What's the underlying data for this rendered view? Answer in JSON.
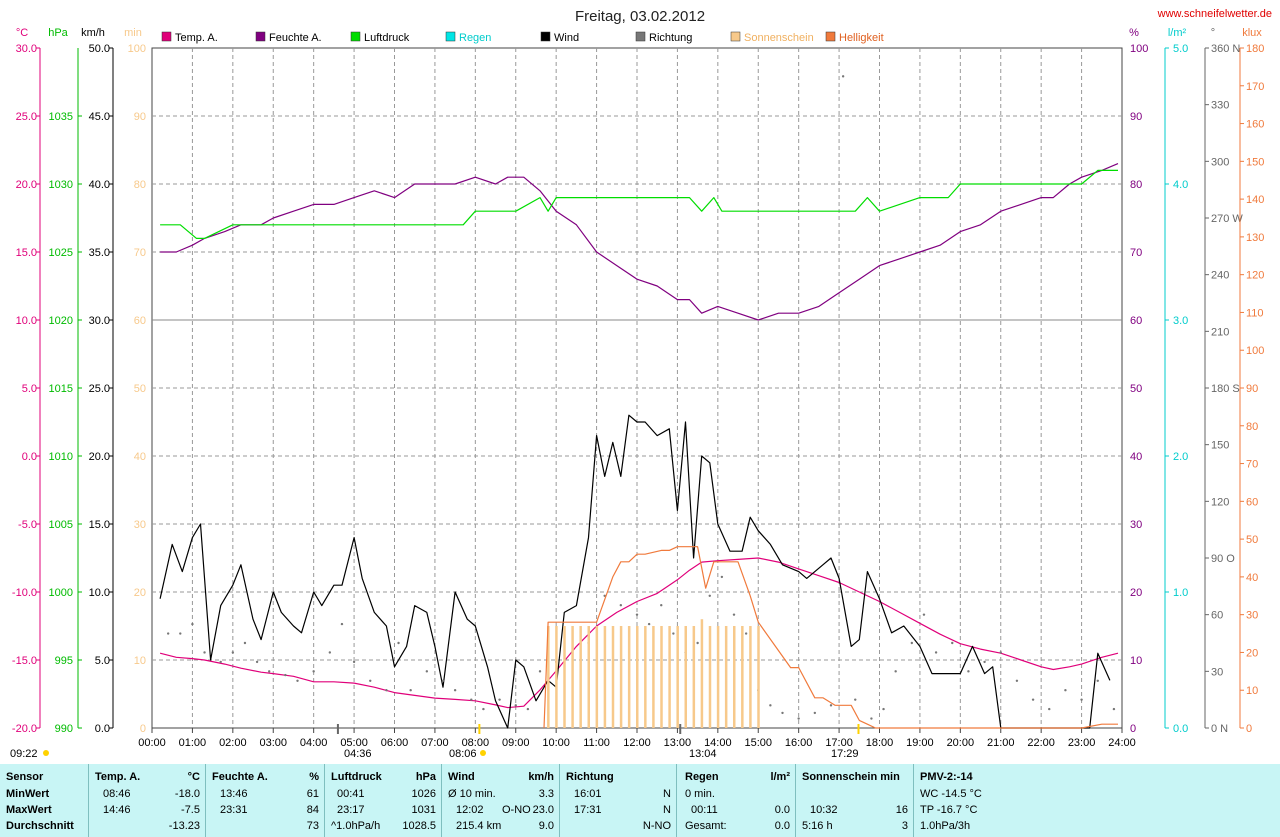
{
  "title": "Freitag, 03.02.2012",
  "site": "www.schneifelwetter.de",
  "axis_units": {
    "temp": "°C",
    "pressure": "hPa",
    "wind": "km/h",
    "sun_min": "min",
    "humidity": "%",
    "rain": "l/m²",
    "direction": "°",
    "light": "klux"
  },
  "legend": [
    {
      "name": "Temp. A.",
      "color": "#e0007a"
    },
    {
      "name": "Feuchte A.",
      "color": "#800080"
    },
    {
      "name": "Luftdruck",
      "color": "#00dd00"
    },
    {
      "name": "Regen",
      "color": "#00e5e5"
    },
    {
      "name": "Wind",
      "color": "#000000"
    },
    {
      "name": "Richtung",
      "color": "#777777"
    },
    {
      "name": "Sonnenschein",
      "color": "#f7c98b"
    },
    {
      "name": "Helligkeit",
      "color": "#f07a3c"
    }
  ],
  "markers": {
    "start": "09:22",
    "moonset": "04:36",
    "sunrise": "08:06",
    "moon_transit": "13:04",
    "sunset": "17:29"
  },
  "chart_data": {
    "type": "line",
    "x_ticks": [
      "00:00",
      "01:00",
      "02:00",
      "03:00",
      "04:00",
      "05:00",
      "06:00",
      "07:00",
      "08:00",
      "09:00",
      "10:00",
      "11:00",
      "12:00",
      "13:00",
      "14:00",
      "15:00",
      "16:00",
      "17:00",
      "18:00",
      "19:00",
      "20:00",
      "21:00",
      "22:00",
      "23:00",
      "24:00"
    ],
    "xlim": [
      0,
      24
    ],
    "axes": {
      "temp": {
        "range": [
          -20,
          30
        ],
        "ticks": [
          "30.0",
          "25.0",
          "20.0",
          "15.0",
          "10.0",
          "5.0",
          "0.0",
          "-5.0",
          "-10.0",
          "-15.0",
          "-20.0"
        ]
      },
      "pressure": {
        "range": [
          990,
          1040
        ],
        "ticks": [
          "1035",
          "1030",
          "1025",
          "1020",
          "1015",
          "1010",
          "1005",
          "1000",
          "995",
          "990"
        ]
      },
      "wind": {
        "range": [
          0,
          50
        ],
        "ticks": [
          "50.0",
          "45.0",
          "40.0",
          "35.0",
          "30.0",
          "25.0",
          "20.0",
          "15.0",
          "10.0",
          "5.0",
          "0.0"
        ]
      },
      "sun_min": {
        "range": [
          0,
          100
        ],
        "ticks": [
          "100",
          "90",
          "80",
          "70",
          "60",
          "50",
          "40",
          "30",
          "20",
          "10",
          "0"
        ]
      },
      "humidity": {
        "range": [
          0,
          100
        ],
        "ticks": [
          "100",
          "90",
          "80",
          "70",
          "60",
          "50",
          "40",
          "30",
          "20",
          "10",
          "0"
        ]
      },
      "rain": {
        "range": [
          0,
          5
        ],
        "ticks": [
          "5.0",
          "4.0",
          "3.0",
          "2.0",
          "1.0",
          "0.0"
        ]
      },
      "direction": {
        "range": [
          0,
          360
        ],
        "ticks": [
          "360 N",
          "330",
          "300",
          "270 W",
          "240",
          "210",
          "180 S",
          "150",
          "120",
          "90 O",
          "60",
          "30",
          "0 N"
        ]
      },
      "light": {
        "range": [
          0,
          180
        ],
        "ticks": [
          "180",
          "170",
          "160",
          "150",
          "140",
          "130",
          "120",
          "110",
          "100",
          "90",
          "80",
          "70",
          "60",
          "50",
          "40",
          "30",
          "20",
          "10",
          "0"
        ]
      }
    },
    "series": [
      {
        "name": "Temp. A.",
        "axis": "temp",
        "color": "#e0007a",
        "x": [
          0.2,
          0.6,
          1.0,
          1.3,
          1.8,
          2.2,
          2.7,
          3.0,
          3.5,
          4.0,
          4.5,
          5.0,
          5.5,
          6.0,
          6.5,
          7.0,
          7.5,
          8.0,
          8.5,
          8.8,
          9.2,
          9.6,
          10.0,
          10.5,
          11.0,
          11.5,
          12.0,
          12.5,
          13.0,
          13.3,
          13.6,
          14.0,
          14.5,
          15.0,
          15.5,
          16.0,
          16.5,
          17.0,
          17.5,
          18.0,
          18.5,
          19.0,
          19.5,
          20.0,
          20.5,
          21.0,
          21.5,
          22.0,
          22.3,
          22.7,
          23.0,
          23.5,
          23.9
        ],
        "values": [
          -14.5,
          -14.8,
          -14.9,
          -15.0,
          -15.3,
          -15.6,
          -15.9,
          -16.0,
          -16.2,
          -16.6,
          -16.6,
          -16.7,
          -17.0,
          -17.4,
          -17.6,
          -17.8,
          -17.9,
          -18.0,
          -18.3,
          -18.5,
          -18.4,
          -17.2,
          -15.8,
          -14.0,
          -12.5,
          -11.5,
          -10.7,
          -10.1,
          -9.1,
          -8.4,
          -7.8,
          -7.7,
          -7.6,
          -7.5,
          -7.8,
          -8.3,
          -8.8,
          -9.3,
          -10.0,
          -10.7,
          -11.5,
          -12.3,
          -13.1,
          -13.8,
          -14.2,
          -14.5,
          -15.0,
          -15.5,
          -15.7,
          -15.5,
          -15.3,
          -14.8,
          -14.5
        ]
      },
      {
        "name": "Feuchte A.",
        "axis": "humidity",
        "color": "#800080",
        "x": [
          0.2,
          0.6,
          1.0,
          1.3,
          1.8,
          2.2,
          2.7,
          3.0,
          3.5,
          4.0,
          4.5,
          5.0,
          5.5,
          6.0,
          6.5,
          7.0,
          7.5,
          8.0,
          8.5,
          8.8,
          9.2,
          9.6,
          10.0,
          10.5,
          11.0,
          11.5,
          12.0,
          12.5,
          13.0,
          13.3,
          13.6,
          14.0,
          14.5,
          15.0,
          15.5,
          16.0,
          16.5,
          17.0,
          17.5,
          18.0,
          18.5,
          19.0,
          19.5,
          20.0,
          20.5,
          21.0,
          21.5,
          22.0,
          22.3,
          22.7,
          23.0,
          23.5,
          23.9
        ],
        "values": [
          70,
          70,
          71,
          72,
          73,
          74,
          74,
          75,
          76,
          77,
          77,
          78,
          79,
          78,
          80,
          80,
          80,
          81,
          80,
          81,
          81,
          79,
          76,
          74,
          70,
          68,
          66,
          65,
          63,
          63,
          61,
          62,
          61,
          60,
          61,
          61,
          62,
          64,
          66,
          68,
          69,
          70,
          71,
          73,
          74,
          76,
          77,
          78,
          78,
          80,
          81,
          82,
          83
        ]
      },
      {
        "name": "Luftdruck",
        "axis": "pressure",
        "color": "#00dd00",
        "x": [
          0.2,
          0.7,
          1.1,
          1.3,
          2.0,
          3.0,
          4.0,
          5.0,
          6.0,
          7.0,
          7.7,
          8.0,
          9.0,
          9.6,
          9.8,
          10.0,
          10.3,
          11.0,
          12.0,
          13.0,
          13.3,
          13.6,
          13.9,
          14.1,
          15.0,
          16.0,
          17.0,
          17.4,
          17.7,
          18.0,
          19.0,
          19.4,
          19.7,
          20.0,
          21.0,
          22.0,
          23.0,
          23.4,
          23.9
        ],
        "values": [
          1027,
          1027,
          1026,
          1026,
          1027,
          1027,
          1027,
          1027,
          1027,
          1027,
          1027,
          1028,
          1028,
          1029,
          1028,
          1029,
          1029,
          1029,
          1029,
          1029,
          1029,
          1028,
          1029,
          1028,
          1028,
          1028,
          1028,
          1028,
          1029,
          1028,
          1029,
          1029,
          1029,
          1030,
          1030,
          1030,
          1030,
          1031,
          1031
        ]
      },
      {
        "name": "Wind",
        "axis": "wind",
        "color": "#000000",
        "x": [
          0.2,
          0.5,
          0.75,
          1.0,
          1.2,
          1.45,
          1.7,
          2.0,
          2.2,
          2.5,
          2.7,
          3.0,
          3.2,
          3.5,
          3.7,
          4.0,
          4.2,
          4.5,
          4.7,
          5.0,
          5.2,
          5.5,
          5.8,
          6.0,
          6.3,
          6.5,
          6.8,
          7.0,
          7.2,
          7.5,
          7.8,
          8.0,
          8.3,
          8.5,
          8.8,
          9.0,
          9.2,
          9.5,
          9.8,
          10.0,
          10.2,
          10.5,
          10.8,
          11.0,
          11.2,
          11.4,
          11.6,
          11.8,
          12.0,
          12.2,
          12.5,
          12.8,
          13.0,
          13.2,
          13.4,
          13.6,
          13.8,
          14.0,
          14.3,
          14.6,
          14.8,
          15.0,
          15.3,
          15.6,
          16.0,
          16.2,
          16.6,
          16.8,
          17.0,
          17.3,
          17.5,
          17.7,
          18.0,
          18.3,
          18.6,
          19.0,
          19.3,
          19.6,
          20.0,
          20.3,
          20.6,
          20.8,
          21.0,
          21.5,
          22.0,
          22.5,
          23.0,
          23.2,
          23.4,
          23.7
        ],
        "values": [
          9.5,
          13.5,
          11.5,
          14.0,
          15.0,
          5.0,
          9.0,
          10.5,
          12.0,
          8.0,
          6.5,
          10.0,
          8.5,
          7.5,
          7.0,
          10.0,
          9.0,
          10.5,
          10.5,
          14.0,
          11.0,
          8.5,
          7.5,
          4.5,
          6.0,
          9.0,
          8.5,
          6.0,
          3.0,
          10.0,
          8.0,
          7.5,
          4.5,
          2.0,
          0.0,
          5.0,
          4.5,
          2.0,
          3.5,
          3.0,
          8.5,
          9.0,
          14.0,
          21.5,
          18.5,
          21.0,
          18.5,
          23.0,
          22.5,
          22.5,
          21.5,
          22.0,
          16.0,
          22.5,
          12.5,
          20.0,
          19.5,
          15.0,
          13.0,
          13.0,
          15.5,
          14.5,
          13.5,
          12.0,
          11.5,
          11.0,
          12.0,
          12.5,
          11.0,
          6.0,
          6.5,
          11.5,
          9.5,
          7.0,
          7.5,
          6.0,
          4.0,
          4.0,
          4.0,
          6.0,
          4.0,
          4.5,
          0.0,
          0.0,
          0.0,
          0.0,
          0.0,
          0.0,
          5.5,
          3.5
        ]
      },
      {
        "name": "Richtung",
        "axis": "direction",
        "color": "#777777",
        "style": "dots",
        "x": [
          0.4,
          0.7,
          1.0,
          1.3,
          1.7,
          2.0,
          2.3,
          2.6,
          2.9,
          3.3,
          3.6,
          4.0,
          4.4,
          4.7,
          5.0,
          5.4,
          5.8,
          6.1,
          6.4,
          6.8,
          7.2,
          7.5,
          7.9,
          8.2,
          8.6,
          9.0,
          9.3,
          9.6,
          10.0,
          10.4,
          10.8,
          11.2,
          11.6,
          12.0,
          12.3,
          12.6,
          12.9,
          13.2,
          13.5,
          13.8,
          14.1,
          14.4,
          14.7,
          15.0,
          15.3,
          15.6,
          16.0,
          16.4,
          16.8,
          17.1,
          17.4,
          17.8,
          18.1,
          18.4,
          18.8,
          19.1,
          19.4,
          19.8,
          20.2,
          20.6,
          21.0,
          21.4,
          21.8,
          22.2,
          22.6,
          23.0,
          23.4,
          23.8
        ],
        "values": [
          50,
          50,
          55,
          40,
          35,
          40,
          45,
          35,
          30,
          28,
          25,
          30,
          40,
          55,
          35,
          25,
          20,
          45,
          20,
          30,
          25,
          20,
          15,
          10,
          15,
          12,
          10,
          30,
          35,
          40,
          45,
          70,
          65,
          60,
          55,
          65,
          50,
          40,
          45,
          70,
          80,
          60,
          50,
          20,
          12,
          8,
          5,
          8,
          12,
          345,
          15,
          5,
          10,
          30,
          45,
          60,
          40,
          45,
          30,
          35,
          40,
          25,
          15,
          10,
          20,
          15,
          25,
          10
        ]
      },
      {
        "name": "Sonnenschein",
        "axis": "sun_min",
        "color": "#f7c98b",
        "style": "bars",
        "x": [
          9.8,
          10.0,
          10.2,
          10.4,
          10.6,
          10.8,
          11.0,
          11.2,
          11.4,
          11.6,
          11.8,
          12.0,
          12.2,
          12.4,
          12.6,
          12.8,
          13.0,
          13.2,
          13.4,
          13.6,
          13.8,
          14.0,
          14.2,
          14.4,
          14.6,
          14.8,
          15.0
        ],
        "values": [
          15,
          15,
          15,
          15,
          15,
          15,
          15,
          15,
          15,
          15,
          15,
          15,
          15,
          15,
          15,
          15,
          15,
          15,
          15,
          16,
          15,
          15,
          15,
          15,
          15,
          15,
          15
        ]
      },
      {
        "name": "Helligkeit",
        "axis": "light",
        "color": "#f07a3c",
        "x": [
          9.7,
          9.8,
          10.3,
          10.6,
          11.0,
          11.4,
          11.6,
          11.8,
          12.0,
          12.2,
          12.6,
          12.8,
          13.0,
          13.5,
          13.7,
          13.9,
          14.2,
          14.5,
          14.8,
          15.0,
          15.4,
          15.8,
          16.0,
          16.4,
          16.6,
          16.9,
          17.3,
          17.5,
          17.7,
          17.9,
          18.5,
          19.0,
          20.0,
          22.0,
          23.0,
          23.5,
          23.9
        ],
        "values": [
          0,
          28,
          28,
          28,
          28,
          40,
          44,
          44,
          46,
          46,
          47,
          47,
          48,
          48,
          37,
          44,
          44,
          44,
          35,
          28,
          22,
          16,
          16,
          8,
          8,
          6,
          6,
          2,
          1,
          0,
          0,
          0,
          0,
          0,
          0,
          1,
          1
        ]
      }
    ]
  },
  "stats": {
    "sensor": {
      "header": "Sensor",
      "rows": [
        "MinWert",
        "MaxWert",
        "Durchschnitt"
      ]
    },
    "temp": {
      "header": "Temp. A.",
      "unit": "°C",
      "min_time": "08:46",
      "min": "-18.0",
      "max_time": "14:46",
      "max": "-7.5",
      "avg": "-13.23"
    },
    "humidity": {
      "header": "Feuchte A.",
      "unit": "%",
      "min_time": "13:46",
      "min": "61",
      "max_time": "23:31",
      "max": "84",
      "avg": "73"
    },
    "pressure": {
      "header": "Luftdruck",
      "unit": "hPa",
      "min_time": "00:41",
      "min": "1026",
      "max_time": "23:17",
      "max": "1031",
      "avg_label": "^1.0hPa/h",
      "avg": "1028.5"
    },
    "wind": {
      "header": "Wind",
      "unit": "km/h",
      "min_label": "Ø 10 min.",
      "min": "3.3",
      "max_time": "12:02",
      "max_dir": "O-NO",
      "max": "23.0",
      "avg_label": "215.4 km",
      "avg": "9.0"
    },
    "direction": {
      "header": "Richtung",
      "min_time": "16:01",
      "min": "N",
      "max_time": "17:31",
      "max": "N",
      "avg": "N-NO"
    },
    "rain": {
      "header": "Regen",
      "unit": "l/m²",
      "min_label": "0 min.",
      "max_time": "00:11",
      "max": "0.0",
      "avg_label": "Gesamt:",
      "avg": "0.0"
    },
    "sun": {
      "header": "Sonnenschein min",
      "max_time": "10:32",
      "max": "16",
      "avg_label": "5:16 h",
      "avg": "3"
    },
    "pmv": {
      "header": "PMV-2:-14",
      "row1": "WC -14.5 °C",
      "row2": "TP -16.7 °C",
      "row3": "1.0hPa/3h"
    }
  }
}
